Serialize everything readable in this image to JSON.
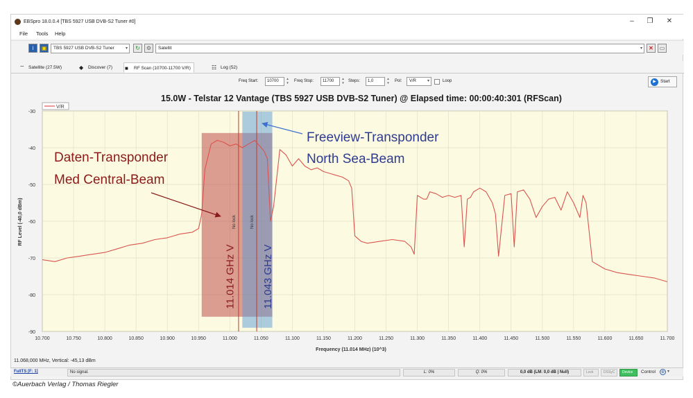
{
  "window": {
    "title": "EBSpro 18.0.0.4 [TBS 5927 USB DVB-S2 Tuner #0]",
    "controls": {
      "minimize": "–",
      "maximize": "❐",
      "close": "✕"
    }
  },
  "menu": {
    "items": [
      "File",
      "Tools",
      "Help"
    ]
  },
  "toolbar_icons": {
    "vlc_label": "vlc"
  },
  "toolbar": {
    "tuner_value": "TBS 5927 USB DVB-S2 Tuner",
    "source_value": "Satellit"
  },
  "tabs": [
    {
      "label": "Satellite (27.5W)",
      "icon": "satellite-dish-icon"
    },
    {
      "label": "Discover (7)",
      "icon": "binoculars-icon"
    },
    {
      "label": "RF Scan (10700-11700 V/R)",
      "icon": "monitor-icon"
    },
    {
      "label": "Log (52)",
      "icon": "log-icon"
    }
  ],
  "scan_params": {
    "freq_start_label": "Freq Start:",
    "freq_start": "10700",
    "freq_stop_label": "Freq Stop:",
    "freq_stop": "11700",
    "steps_label": "Steps:",
    "steps": "1,0",
    "pol_label": "Pol:",
    "pol": "V/R",
    "loop_label": "Loop",
    "start_label": "Start"
  },
  "chart_data": {
    "type": "line",
    "title": "15.0W - Telstar 12 Vantage (TBS 5927 USB DVB-S2 Tuner) @ Elapsed time: 00:00:40:301 (RFScan)",
    "xlabel": "Frequency (11.014 MHz) (10^3)",
    "ylabel": "RF Level (-40,0 dBm)",
    "xlim": [
      10.7,
      11.7
    ],
    "ylim": [
      -90,
      -30
    ],
    "x_ticks": [
      "10.700",
      "10.750",
      "10.800",
      "10.850",
      "10.900",
      "10.950",
      "11.000",
      "11.050",
      "11.100",
      "11.150",
      "11.200",
      "11.250",
      "11.300",
      "11.350",
      "11.400",
      "11.450",
      "11.500",
      "11.550",
      "11.600",
      "11.650",
      "11.700"
    ],
    "y_ticks": [
      "-30",
      "-40",
      "-50",
      "-60",
      "-70",
      "-80",
      "-90"
    ],
    "grid": true,
    "legend": "top-left",
    "series": [
      {
        "name": "V/R",
        "color": "#d9534f",
        "x": [
          10.7,
          10.72,
          10.74,
          10.76,
          10.78,
          10.8,
          10.82,
          10.84,
          10.86,
          10.88,
          10.9,
          10.92,
          10.94,
          10.95,
          10.955,
          10.96,
          10.97,
          10.98,
          10.99,
          11.0,
          11.01,
          11.02,
          11.03,
          11.04,
          11.05,
          11.055,
          11.06,
          11.065,
          11.07,
          11.08,
          11.09,
          11.1,
          11.11,
          11.12,
          11.13,
          11.14,
          11.15,
          11.16,
          11.17,
          11.18,
          11.19,
          11.195,
          11.2,
          11.21,
          11.22,
          11.24,
          11.26,
          11.28,
          11.29,
          11.295,
          11.3,
          11.31,
          11.315,
          11.32,
          11.33,
          11.34,
          11.35,
          11.36,
          11.37,
          11.375,
          11.38,
          11.385,
          11.39,
          11.4,
          11.41,
          11.42,
          11.425,
          11.43,
          11.44,
          11.45,
          11.455,
          11.46,
          11.47,
          11.48,
          11.49,
          11.5,
          11.51,
          11.52,
          11.53,
          11.54,
          11.55,
          11.56,
          11.565,
          11.57,
          11.58,
          11.6,
          11.62,
          11.64,
          11.66,
          11.68,
          11.7
        ],
        "y": [
          -70.5,
          -71,
          -70,
          -69.5,
          -69,
          -68.5,
          -67.5,
          -66.5,
          -66,
          -65,
          -64.5,
          -63.5,
          -63,
          -62,
          -58,
          -46,
          -39,
          -38,
          -38.5,
          -39.5,
          -39,
          -40,
          -39,
          -38,
          -40,
          -41,
          -43,
          -60,
          -56,
          -40.5,
          -42,
          -45,
          -43,
          -45,
          -46,
          -45.5,
          -46.5,
          -47,
          -47.5,
          -48,
          -49,
          -51,
          -64,
          -65.5,
          -66,
          -65.5,
          -65,
          -65.5,
          -67,
          -69,
          -53,
          -54,
          -54,
          -52,
          -52.5,
          -53.5,
          -53,
          -53.5,
          -53,
          -67,
          -54,
          -53.5,
          -52,
          -51,
          -52,
          -55,
          -58,
          -69.5,
          -53,
          -52.5,
          -67,
          -52,
          -51.5,
          -54,
          -59,
          -56,
          -54,
          -53.5,
          -57,
          -52,
          -55,
          -59,
          -53,
          -55,
          -71,
          -73,
          -74,
          -74.5,
          -75,
          -75.5,
          -76.5
        ]
      }
    ],
    "transponders": [
      {
        "label": "11.014 GHz V",
        "lock": "No lock",
        "x": 11.014,
        "x_start": 10.955,
        "x_end": 11.068,
        "color": "#c0504d"
      },
      {
        "label": "11.043 GHz V",
        "lock": "No lock",
        "x": 11.043,
        "x_start": 11.02,
        "x_end": 11.068,
        "color": "#5b9bd5"
      }
    ],
    "annotations": [
      {
        "lines": [
          "Daten-Transponder",
          "Med Central-Beam"
        ],
        "color": "#8b1a1a"
      },
      {
        "lines": [
          "Freeview-Transponder",
          "North Sea-Beam"
        ],
        "color": "#2f3b8f"
      }
    ]
  },
  "status": {
    "readout": "11.068,000 MHz, Vertical: -45,13 dBm",
    "link": "FullTS [F: 1]",
    "signal": "No signal.",
    "level": "L: 0%",
    "quality": "Q: 0%",
    "snr": "0,0 dB (LM: 0,0 dB | Null)",
    "lock": "Lock",
    "dssyc": "DSSyC",
    "device": "Device",
    "control": "Control"
  },
  "credit": "©Auerbach Verlag / Thomas Riegler"
}
